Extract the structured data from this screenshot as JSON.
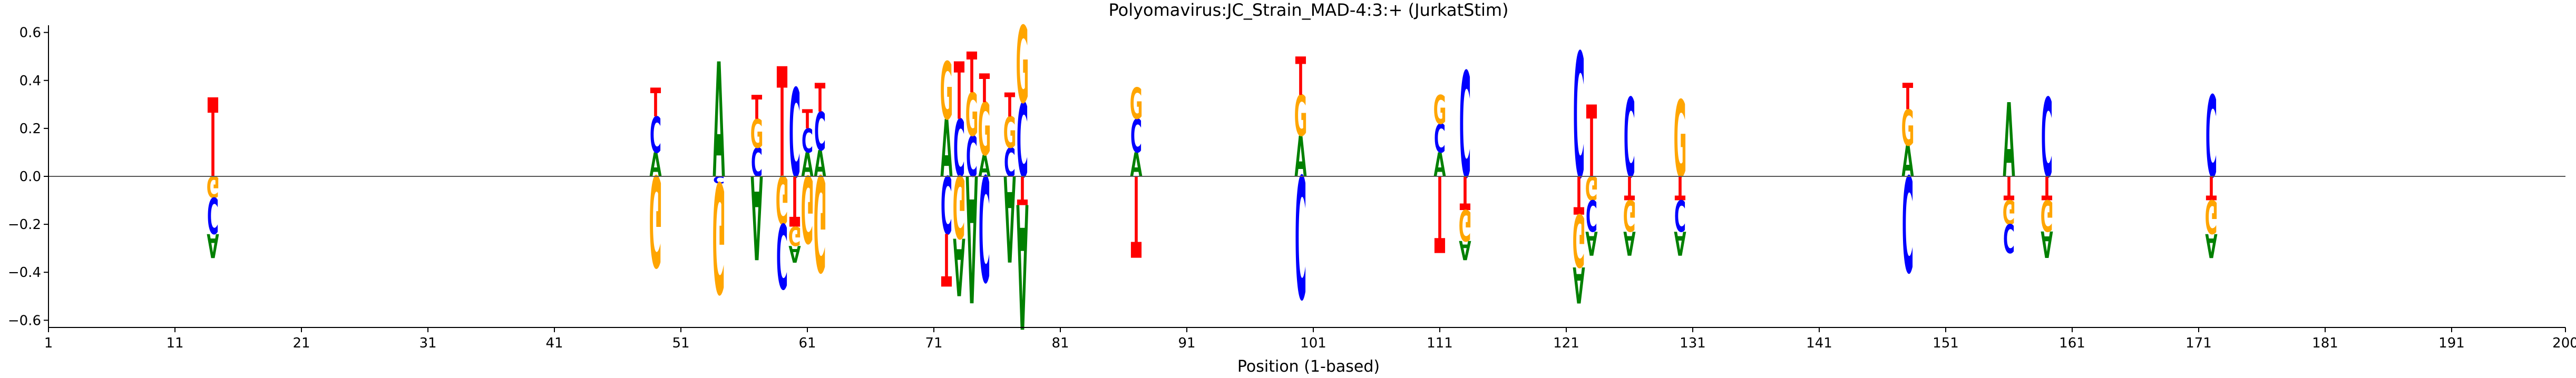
{
  "chart_data": {
    "type": "sequence-logo",
    "title": "Polyomavirus:JC_Strain_MAD-4:3:+  (JurkatStim)",
    "xlabel": "Position (1-based)",
    "ylabel": "",
    "xlim": [
      1,
      200
    ],
    "ylim": [
      -0.63,
      0.63
    ],
    "x_ticks": [
      1,
      11,
      21,
      31,
      41,
      51,
      61,
      71,
      81,
      91,
      101,
      111,
      121,
      131,
      141,
      151,
      161,
      171,
      181,
      191,
      200
    ],
    "y_ticks": [
      -0.6,
      -0.4,
      -0.2,
      0.0,
      0.2,
      0.4,
      0.6
    ],
    "y_tick_labels": [
      "−0.6",
      "−0.4",
      "−0.2",
      "0.0",
      "0.2",
      "0.4",
      "0.6"
    ],
    "grid": false,
    "colors": {
      "A": "#008000",
      "C": "#0000ff",
      "G": "#ffa500",
      "T": "#ff0000"
    },
    "positions": [
      {
        "pos": 14,
        "letters": [
          {
            "b": "T",
            "y0": 0.0,
            "y1": 0.33
          },
          {
            "b": "G",
            "y0": 0.0,
            "y1": -0.09
          },
          {
            "b": "C",
            "y0": -0.09,
            "y1": -0.24
          },
          {
            "b": "A",
            "y0": -0.24,
            "y1": -0.34
          }
        ]
      },
      {
        "pos": 49,
        "letters": [
          {
            "b": "A",
            "y0": 0.0,
            "y1": 0.1
          },
          {
            "b": "C",
            "y0": 0.1,
            "y1": 0.25
          },
          {
            "b": "T",
            "y0": 0.25,
            "y1": 0.37
          },
          {
            "b": "G",
            "y0": 0.0,
            "y1": -0.38
          }
        ]
      },
      {
        "pos": 54,
        "letters": [
          {
            "b": "A",
            "y0": 0.0,
            "y1": 0.48
          },
          {
            "b": "C",
            "y0": 0.0,
            "y1": -0.03
          },
          {
            "b": "G",
            "y0": -0.03,
            "y1": -0.49
          }
        ]
      },
      {
        "pos": 57,
        "letters": [
          {
            "b": "C",
            "y0": 0.0,
            "y1": 0.12
          },
          {
            "b": "G",
            "y0": 0.12,
            "y1": 0.24
          },
          {
            "b": "T",
            "y0": 0.24,
            "y1": 0.34
          },
          {
            "b": "A",
            "y0": 0.0,
            "y1": -0.35
          }
        ]
      },
      {
        "pos": 59,
        "letters": [
          {
            "b": "T",
            "y0": 0.0,
            "y1": 0.46
          },
          {
            "b": "G",
            "y0": 0.0,
            "y1": -0.2
          },
          {
            "b": "C",
            "y0": -0.2,
            "y1": -0.47
          }
        ]
      },
      {
        "pos": 60,
        "letters": [
          {
            "b": "C",
            "y0": 0.0,
            "y1": 0.37
          },
          {
            "b": "T",
            "y0": 0.0,
            "y1": -0.21
          },
          {
            "b": "G",
            "y0": -0.21,
            "y1": -0.29
          },
          {
            "b": "A",
            "y0": -0.29,
            "y1": -0.36
          }
        ]
      },
      {
        "pos": 61,
        "letters": [
          {
            "b": "A",
            "y0": 0.0,
            "y1": 0.1
          },
          {
            "b": "C",
            "y0": 0.1,
            "y1": 0.2
          },
          {
            "b": "T",
            "y0": 0.2,
            "y1": 0.28
          },
          {
            "b": "G",
            "y0": 0.0,
            "y1": -0.28
          }
        ]
      },
      {
        "pos": 62,
        "letters": [
          {
            "b": "A",
            "y0": 0.0,
            "y1": 0.11
          },
          {
            "b": "C",
            "y0": 0.11,
            "y1": 0.27
          },
          {
            "b": "T",
            "y0": 0.27,
            "y1": 0.39
          },
          {
            "b": "G",
            "y0": 0.0,
            "y1": -0.4
          }
        ]
      },
      {
        "pos": 72,
        "letters": [
          {
            "b": "A",
            "y0": 0.0,
            "y1": 0.24
          },
          {
            "b": "G",
            "y0": 0.24,
            "y1": 0.48
          },
          {
            "b": "C",
            "y0": 0.0,
            "y1": -0.24
          },
          {
            "b": "T",
            "y0": -0.24,
            "y1": -0.46
          }
        ]
      },
      {
        "pos": 73,
        "letters": [
          {
            "b": "C",
            "y0": 0.0,
            "y1": 0.24
          },
          {
            "b": "T",
            "y0": 0.24,
            "y1": 0.48
          },
          {
            "b": "G",
            "y0": 0.0,
            "y1": -0.26
          },
          {
            "b": "A",
            "y0": -0.26,
            "y1": -0.5
          }
        ]
      },
      {
        "pos": 74,
        "letters": [
          {
            "b": "C",
            "y0": 0.0,
            "y1": 0.17
          },
          {
            "b": "G",
            "y0": 0.17,
            "y1": 0.35
          },
          {
            "b": "T",
            "y0": 0.35,
            "y1": 0.52
          },
          {
            "b": "A",
            "y0": 0.0,
            "y1": -0.53
          }
        ]
      },
      {
        "pos": 75,
        "letters": [
          {
            "b": "A",
            "y0": 0.0,
            "y1": 0.09
          },
          {
            "b": "G",
            "y0": 0.09,
            "y1": 0.31
          },
          {
            "b": "T",
            "y0": 0.31,
            "y1": 0.43
          },
          {
            "b": "C",
            "y0": 0.0,
            "y1": -0.44
          }
        ]
      },
      {
        "pos": 77,
        "letters": [
          {
            "b": "C",
            "y0": 0.0,
            "y1": 0.12
          },
          {
            "b": "G",
            "y0": 0.12,
            "y1": 0.25
          },
          {
            "b": "T",
            "y0": 0.25,
            "y1": 0.35
          },
          {
            "b": "A",
            "y0": 0.0,
            "y1": -0.36
          }
        ]
      },
      {
        "pos": 78,
        "letters": [
          {
            "b": "C",
            "y0": 0.0,
            "y1": 0.31
          },
          {
            "b": "G",
            "y0": 0.31,
            "y1": 0.63
          },
          {
            "b": "T",
            "y0": 0.0,
            "y1": -0.12
          },
          {
            "b": "A",
            "y0": -0.12,
            "y1": -0.64
          }
        ]
      },
      {
        "pos": 87,
        "letters": [
          {
            "b": "A",
            "y0": 0.0,
            "y1": 0.1
          },
          {
            "b": "C",
            "y0": 0.1,
            "y1": 0.24
          },
          {
            "b": "G",
            "y0": 0.24,
            "y1": 0.37
          },
          {
            "b": "T",
            "y0": 0.0,
            "y1": -0.34
          }
        ]
      },
      {
        "pos": 100,
        "letters": [
          {
            "b": "A",
            "y0": 0.0,
            "y1": 0.17
          },
          {
            "b": "G",
            "y0": 0.17,
            "y1": 0.34
          },
          {
            "b": "T",
            "y0": 0.34,
            "y1": 0.5
          },
          {
            "b": "C",
            "y0": 0.0,
            "y1": -0.51
          }
        ]
      },
      {
        "pos": 111,
        "letters": [
          {
            "b": "A",
            "y0": 0.0,
            "y1": 0.1
          },
          {
            "b": "C",
            "y0": 0.1,
            "y1": 0.22
          },
          {
            "b": "G",
            "y0": 0.22,
            "y1": 0.34
          },
          {
            "b": "T",
            "y0": 0.0,
            "y1": -0.32
          }
        ]
      },
      {
        "pos": 113,
        "letters": [
          {
            "b": "C",
            "y0": 0.0,
            "y1": 0.44
          },
          {
            "b": "T",
            "y0": 0.0,
            "y1": -0.14
          },
          {
            "b": "G",
            "y0": -0.14,
            "y1": -0.27
          },
          {
            "b": "A",
            "y0": -0.27,
            "y1": -0.35
          }
        ]
      },
      {
        "pos": 122,
        "letters": [
          {
            "b": "C",
            "y0": 0.0,
            "y1": 0.52
          },
          {
            "b": "T",
            "y0": 0.0,
            "y1": -0.16
          },
          {
            "b": "G",
            "y0": -0.16,
            "y1": -0.38
          },
          {
            "b": "A",
            "y0": -0.38,
            "y1": -0.53
          }
        ]
      },
      {
        "pos": 123,
        "letters": [
          {
            "b": "T",
            "y0": 0.0,
            "y1": 0.3
          },
          {
            "b": "G",
            "y0": 0.0,
            "y1": -0.1
          },
          {
            "b": "C",
            "y0": -0.1,
            "y1": -0.23
          },
          {
            "b": "A",
            "y0": -0.23,
            "y1": -0.33
          }
        ]
      },
      {
        "pos": 126,
        "letters": [
          {
            "b": "C",
            "y0": 0.0,
            "y1": 0.33
          },
          {
            "b": "T",
            "y0": 0.0,
            "y1": -0.1
          },
          {
            "b": "G",
            "y0": -0.1,
            "y1": -0.23
          },
          {
            "b": "A",
            "y0": -0.23,
            "y1": -0.33
          }
        ]
      },
      {
        "pos": 130,
        "letters": [
          {
            "b": "G",
            "y0": 0.0,
            "y1": 0.32
          },
          {
            "b": "T",
            "y0": 0.0,
            "y1": -0.1
          },
          {
            "b": "C",
            "y0": -0.1,
            "y1": -0.23
          },
          {
            "b": "A",
            "y0": -0.23,
            "y1": -0.33
          }
        ]
      },
      {
        "pos": 148,
        "letters": [
          {
            "b": "A",
            "y0": 0.0,
            "y1": 0.13
          },
          {
            "b": "G",
            "y0": 0.13,
            "y1": 0.28
          },
          {
            "b": "T",
            "y0": 0.28,
            "y1": 0.39
          },
          {
            "b": "C",
            "y0": 0.0,
            "y1": -0.4
          }
        ]
      },
      {
        "pos": 156,
        "letters": [
          {
            "b": "A",
            "y0": 0.0,
            "y1": 0.31
          },
          {
            "b": "T",
            "y0": 0.0,
            "y1": -0.1
          },
          {
            "b": "G",
            "y0": -0.1,
            "y1": -0.2
          },
          {
            "b": "C",
            "y0": -0.2,
            "y1": -0.32
          }
        ]
      },
      {
        "pos": 159,
        "letters": [
          {
            "b": "C",
            "y0": 0.0,
            "y1": 0.33
          },
          {
            "b": "T",
            "y0": 0.0,
            "y1": -0.1
          },
          {
            "b": "G",
            "y0": -0.1,
            "y1": -0.23
          },
          {
            "b": "A",
            "y0": -0.23,
            "y1": -0.34
          }
        ]
      },
      {
        "pos": 172,
        "letters": [
          {
            "b": "C",
            "y0": 0.0,
            "y1": 0.34
          },
          {
            "b": "T",
            "y0": 0.0,
            "y1": -0.1
          },
          {
            "b": "G",
            "y0": -0.1,
            "y1": -0.24
          },
          {
            "b": "A",
            "y0": -0.24,
            "y1": -0.34
          }
        ]
      }
    ]
  }
}
